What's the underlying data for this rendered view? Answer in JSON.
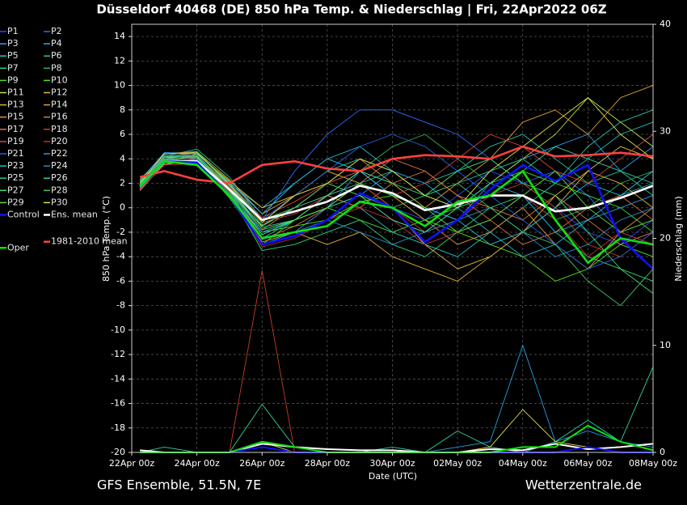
{
  "chart_data": {
    "type": "line",
    "title": "Düsseldorf 40468 (DE)  850 hPa Temp. & Niederschlag | Fri, 22Apr2022 06Z",
    "x_label": "Date (UTC)",
    "y_label": "850 hPa Temp. (°C)",
    "y2_label": "Niederschlag (mm)",
    "footer_left": "GFS Ensemble, 51.5N, 7E",
    "footer_right": "Wetterzentrale.de",
    "grid": true,
    "xlim": [
      0,
      16
    ],
    "xticks": [
      {
        "value": 0,
        "label": "22Apr 00z"
      },
      {
        "value": 2,
        "label": "24Apr 00z"
      },
      {
        "value": 4,
        "label": "26Apr 00z"
      },
      {
        "value": 6,
        "label": "28Apr 00z"
      },
      {
        "value": 8,
        "label": "30Apr 00z"
      },
      {
        "value": 10,
        "label": "02May 00z"
      },
      {
        "value": 12,
        "label": "04May 00z"
      },
      {
        "value": 14,
        "label": "06May 00z"
      },
      {
        "value": 16,
        "label": "08May 00z"
      }
    ],
    "ylim": [
      -20,
      15
    ],
    "yticks": [
      14,
      12,
      10,
      8,
      6,
      4,
      2,
      0,
      -2,
      -4,
      -6,
      -8,
      -10,
      -12,
      -14,
      -16,
      -18,
      -20
    ],
    "y2lim": [
      0,
      40
    ],
    "y2ticks": [
      0,
      10,
      20,
      30,
      40
    ],
    "x": [
      0.25,
      1,
      2,
      3,
      4,
      5,
      6,
      7,
      8,
      9,
      10,
      11,
      12,
      13,
      14,
      15,
      16
    ],
    "series": [
      {
        "name": "P1",
        "color": "#2a4cff",
        "values": [
          1.5,
          4,
          4,
          1,
          -2,
          -1,
          1,
          2,
          0,
          -1,
          1,
          3,
          2,
          0,
          -2,
          -3,
          -1
        ]
      },
      {
        "name": "P2",
        "color": "#2f6cff",
        "values": [
          2,
          4.5,
          4.5,
          2,
          -1,
          3,
          6,
          8,
          8,
          7,
          6,
          4,
          2,
          3,
          1,
          -2,
          -3
        ]
      },
      {
        "name": "P3",
        "color": "#2aa0f0",
        "values": [
          1.8,
          3.5,
          4,
          1.5,
          -3,
          -2,
          0,
          3,
          2,
          0,
          -1,
          2,
          4,
          5,
          6,
          3,
          5
        ]
      },
      {
        "name": "P4",
        "color": "#22b4d4",
        "values": [
          2,
          4,
          4.5,
          2,
          0,
          2,
          4,
          5,
          3,
          1,
          0,
          -2,
          -4,
          -3,
          -1,
          1,
          2
        ]
      },
      {
        "name": "P5",
        "color": "#22c4c4",
        "values": [
          1.5,
          3.8,
          3.5,
          1,
          -2.5,
          -1,
          1,
          0,
          -2,
          -3,
          -4,
          -2,
          0,
          2,
          4,
          6,
          7
        ]
      },
      {
        "name": "P6",
        "color": "#22c49e",
        "values": [
          2.2,
          4.2,
          4.8,
          2.5,
          -1,
          1,
          3,
          4,
          3,
          2,
          3,
          5,
          6,
          4,
          2,
          3,
          1
        ]
      },
      {
        "name": "P7",
        "color": "#30d080",
        "values": [
          1.6,
          3.9,
          3.6,
          1.2,
          -3.5,
          -3,
          -2,
          -1,
          -3,
          -4,
          -2,
          0,
          1,
          -2,
          -4,
          -5,
          -6
        ]
      },
      {
        "name": "P8",
        "color": "#30b050",
        "values": [
          2.1,
          4.3,
          4.1,
          1.8,
          -1,
          0,
          2,
          3,
          5,
          6,
          4,
          2,
          1,
          -1,
          0,
          2,
          3
        ]
      },
      {
        "name": "P9",
        "color": "#40e040",
        "values": [
          1.7,
          3.6,
          3.9,
          0.8,
          -3,
          -1,
          0,
          -1,
          -2,
          -1,
          0,
          1,
          3,
          2,
          1,
          0,
          -2
        ]
      },
      {
        "name": "P10",
        "color": "#50e020",
        "values": [
          2,
          4,
          4,
          1.5,
          -2,
          -1.5,
          -1,
          0.5,
          1,
          -1,
          -2,
          -3,
          -4,
          -6,
          -5,
          -3,
          -4
        ]
      },
      {
        "name": "P11",
        "color": "#c0e040",
        "values": [
          1.8,
          4.1,
          4.2,
          1.4,
          -1.5,
          0,
          2,
          1,
          -1,
          -2,
          0,
          2,
          4,
          6,
          9,
          7,
          5
        ]
      },
      {
        "name": "P12",
        "color": "#e0c040",
        "values": [
          1.9,
          3.7,
          4.4,
          2.2,
          0,
          1,
          3,
          2,
          0,
          -3,
          -5,
          -4,
          -2,
          0,
          3,
          5,
          4
        ]
      },
      {
        "name": "P13",
        "color": "#e0b030",
        "values": [
          1.4,
          3.6,
          3.8,
          0.9,
          -2.8,
          -2,
          -3,
          -2,
          -4,
          -5,
          -6,
          -4,
          -2,
          1,
          3,
          2,
          0
        ]
      },
      {
        "name": "P14",
        "color": "#e0a030",
        "values": [
          2.3,
          4.4,
          4.6,
          2.3,
          -0.5,
          1,
          2,
          4,
          2,
          0,
          2,
          4,
          7,
          8,
          6,
          9,
          10
        ]
      },
      {
        "name": "P15",
        "color": "#e09040",
        "values": [
          1.6,
          3.9,
          4,
          1.1,
          -2.2,
          -1,
          1,
          3,
          1,
          -1,
          -3,
          -2,
          0,
          -3,
          -5,
          -2,
          0
        ]
      },
      {
        "name": "P16",
        "color": "#d08040",
        "values": [
          2,
          4.2,
          4.3,
          1.6,
          -1.8,
          0,
          1,
          0,
          2,
          3,
          1,
          0,
          -1,
          1,
          -1,
          -3,
          -2
        ]
      },
      {
        "name": "P17",
        "color": "#e07040",
        "values": [
          1.7,
          3.8,
          4.1,
          1.3,
          -2.6,
          -1.5,
          0,
          2,
          4,
          3,
          1,
          -1,
          -3,
          -2,
          0,
          1,
          -1
        ]
      },
      {
        "name": "P18",
        "color": "#c04020",
        "values": [
          1.9,
          4,
          4,
          1.7,
          -1.2,
          -0.5,
          1,
          2,
          0,
          -2,
          -1,
          1,
          2,
          0,
          -3,
          -4,
          -2
        ],
        "precip": [
          0,
          0,
          0,
          0,
          17,
          0,
          0,
          0,
          0,
          0,
          0,
          0.5,
          0,
          0,
          0.5,
          0,
          0
        ]
      },
      {
        "name": "P19",
        "color": "#e04040",
        "values": [
          2.1,
          4.1,
          4.5,
          2,
          -0.8,
          0.5,
          2,
          3,
          1,
          2,
          4,
          6,
          5,
          3,
          2,
          4,
          6
        ]
      },
      {
        "name": "P20",
        "color": "#c03030",
        "values": [
          1.5,
          3.5,
          3.6,
          1,
          -3.2,
          -2.5,
          -1,
          0,
          -1,
          -3,
          -2,
          -1,
          1,
          -1,
          -4,
          -2,
          -3
        ]
      },
      {
        "name": "P21",
        "color": "#2060e0",
        "values": [
          2,
          4.3,
          4.2,
          1.9,
          -1,
          1,
          3,
          5,
          6,
          5,
          3,
          1,
          -1,
          -3,
          -5,
          -4,
          -2
        ]
      },
      {
        "name": "P22",
        "color": "#20a0e0",
        "values": [
          1.8,
          3.9,
          4,
          1.5,
          -2,
          -1,
          0,
          1,
          3,
          2,
          0,
          2,
          1,
          -2,
          -1,
          0,
          1
        ],
        "precip": [
          0,
          0,
          0,
          0,
          0.5,
          0,
          0,
          0,
          0,
          0,
          0.5,
          1,
          10,
          1,
          2,
          1,
          0.5
        ]
      },
      {
        "name": "P23",
        "color": "#20c0e0",
        "values": [
          2.2,
          4.5,
          4.4,
          2.1,
          -0.5,
          2,
          4,
          3,
          1,
          0,
          -1,
          -3,
          -2,
          0,
          2,
          1,
          3
        ]
      },
      {
        "name": "P24",
        "color": "#2090c0",
        "values": [
          1.6,
          3.7,
          3.9,
          1.2,
          -2.4,
          -2,
          -1,
          -2,
          -3,
          -2,
          -1,
          0,
          -2,
          -4,
          -3,
          -1,
          0
        ]
      },
      {
        "name": "P25",
        "color": "#30c0a0",
        "values": [
          2,
          4,
          4.3,
          1.8,
          -1.4,
          0,
          1,
          2,
          3,
          1,
          2,
          3,
          4,
          2,
          5,
          7,
          8
        ]
      },
      {
        "name": "P26",
        "color": "#30d0a0",
        "values": [
          1.9,
          4.2,
          4.1,
          1.6,
          -1.6,
          -1,
          0,
          1,
          -1,
          -2,
          0,
          2,
          3,
          5,
          4,
          3,
          2
        ],
        "precip": [
          0,
          0.5,
          0,
          0,
          4.5,
          0.5,
          0,
          0,
          0.5,
          0,
          2,
          0.5,
          0,
          1,
          3,
          1,
          8
        ]
      },
      {
        "name": "P27",
        "color": "#40e080",
        "values": [
          1.7,
          3.8,
          3.8,
          1.4,
          -2.2,
          -1,
          1,
          3,
          2,
          1,
          3,
          4,
          2,
          1,
          -2,
          -5,
          -7
        ]
      },
      {
        "name": "P28",
        "color": "#40c060",
        "values": [
          2.1,
          4.1,
          4.6,
          2,
          -1,
          0,
          2,
          1,
          0,
          1,
          2,
          0,
          -2,
          -3,
          -6,
          -8,
          -5
        ]
      },
      {
        "name": "P29",
        "color": "#60e040",
        "values": [
          1.8,
          3.9,
          4.2,
          1.5,
          -1.8,
          -1,
          0,
          2,
          1,
          0,
          -2,
          -1,
          1,
          3,
          0,
          -2,
          -1
        ]
      },
      {
        "name": "P30",
        "color": "#e0e040",
        "values": [
          2,
          4.4,
          4.5,
          1.9,
          -1.2,
          1,
          2,
          4,
          3,
          1,
          0,
          3,
          5,
          7,
          9,
          6,
          4
        ],
        "precip": [
          0,
          0,
          0,
          0,
          1,
          0,
          0,
          0,
          0,
          0,
          0,
          0.5,
          4,
          1,
          0.5,
          0,
          0
        ]
      },
      {
        "name": "Control",
        "color": "#1010ff",
        "values": [
          1.8,
          3.8,
          3.7,
          1,
          -3,
          -2.3,
          -1,
          1.2,
          0,
          -2.8,
          -1,
          1.5,
          3.5,
          2.2,
          3.5,
          -2.5,
          -5
        ],
        "precip": [
          0,
          0,
          0,
          0,
          0.5,
          0,
          0,
          0,
          0,
          0,
          0,
          0,
          0,
          0,
          0.5,
          0,
          0
        ]
      },
      {
        "name": "Ens. mean",
        "color": "#ffffff",
        "values": [
          1.8,
          3.8,
          3.8,
          1.5,
          -1,
          -0.3,
          0.5,
          1.8,
          1.2,
          -0.2,
          0.3,
          1,
          1,
          -0.3,
          0,
          0.8,
          1.8
        ],
        "precip": [
          0.2,
          0,
          0,
          0,
          0.8,
          0.5,
          0.3,
          0.2,
          0.2,
          0,
          0,
          0.3,
          0.2,
          0.8,
          0.3,
          0.5,
          0.8
        ]
      },
      {
        "name": "Oper",
        "color": "#10e010",
        "values": [
          1.8,
          3.8,
          3.5,
          1,
          -2.5,
          -2,
          -1.5,
          0.5,
          0,
          -1.5,
          0.5,
          1,
          3,
          -1,
          -4.5,
          -2.5,
          -3
        ],
        "precip": [
          0,
          0,
          0,
          0,
          1,
          0.5,
          0,
          0,
          0,
          0,
          0,
          0,
          0.5,
          0.5,
          2.5,
          1,
          0.2
        ]
      },
      {
        "name": "1981-2010 mean",
        "color": "#ff4040",
        "values": [
          2.5,
          3,
          2.3,
          2,
          3.5,
          3.8,
          3.2,
          3,
          4,
          4.3,
          4.2,
          4,
          5,
          4.2,
          4.3,
          4.5,
          4.2
        ]
      }
    ]
  }
}
